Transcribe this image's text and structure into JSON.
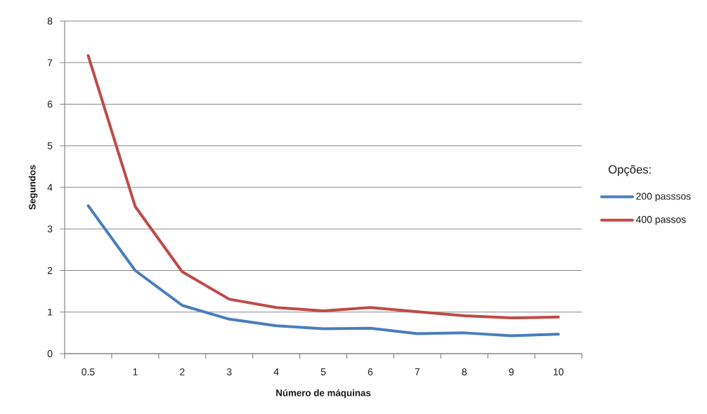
{
  "chart_data": {
    "type": "line",
    "xlabel": "Número de máquinas",
    "ylabel": "Segundos",
    "legend_title": "Opções:",
    "categories": [
      "0.5",
      "1",
      "2",
      "3",
      "4",
      "5",
      "6",
      "7",
      "8",
      "9",
      "10"
    ],
    "series": [
      {
        "name": "200 passsos",
        "color": "#4a7ebb",
        "values": [
          3.56,
          2.0,
          1.16,
          0.83,
          0.67,
          0.6,
          0.61,
          0.48,
          0.5,
          0.43,
          0.47
        ]
      },
      {
        "name": "400 passos",
        "color": "#be4b48",
        "values": [
          7.17,
          3.54,
          1.97,
          1.31,
          1.11,
          1.03,
          1.11,
          1.01,
          0.91,
          0.86,
          0.88
        ]
      }
    ],
    "ylim": [
      0,
      8
    ],
    "yticks": [
      0,
      1,
      2,
      3,
      4,
      5,
      6,
      7,
      8
    ],
    "grid": "y",
    "legend": "right",
    "line_style": "solid"
  }
}
